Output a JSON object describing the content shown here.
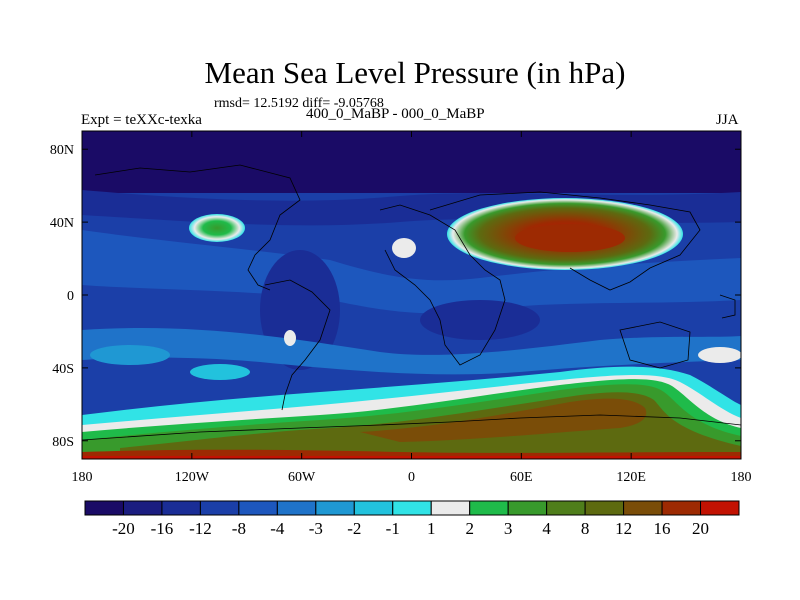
{
  "chart_data": {
    "type": "heatmap",
    "title": "Mean Sea Level Pressure (in hPa)",
    "stats_line": "rmsd= 12.5192 diff= -9.05768",
    "left_label": "Expt = teXXc-texka",
    "subtitle": "400_0_MaBP - 000_0_MaBP",
    "season": "JJA",
    "xlabel": "",
    "ylabel": "",
    "xlim": [
      -180,
      180
    ],
    "ylim": [
      -90,
      90
    ],
    "x_ticks": [
      {
        "value": -180,
        "label": "180"
      },
      {
        "value": -120,
        "label": "120W"
      },
      {
        "value": -60,
        "label": "60W"
      },
      {
        "value": 0,
        "label": "0"
      },
      {
        "value": 60,
        "label": "60E"
      },
      {
        "value": 120,
        "label": "120E"
      },
      {
        "value": 180,
        "label": "180"
      }
    ],
    "y_ticks": [
      {
        "value": 80,
        "label": "80N"
      },
      {
        "value": 40,
        "label": "40N"
      },
      {
        "value": 0,
        "label": "0"
      },
      {
        "value": -40,
        "label": "40S"
      },
      {
        "value": -80,
        "label": "80S"
      }
    ],
    "colorbar": {
      "levels": [
        "-20",
        "-16",
        "-12",
        "-8",
        "-4",
        "-3",
        "-2",
        "-1",
        "1",
        "2",
        "3",
        "4",
        "8",
        "12",
        "16",
        "20"
      ],
      "colors": [
        "#1a0b66",
        "#1b1d80",
        "#1a2d96",
        "#1b3fa8",
        "#1d57bd",
        "#1f73c9",
        "#1f98d3",
        "#22c2dd",
        "#31e3e6",
        "#ebebeb",
        "#1fbb4a",
        "#389a2c",
        "#4f7e1b",
        "#5d6a10",
        "#7a4d08",
        "#9d2a02",
        "#c21202"
      ]
    },
    "field_regions": [
      {
        "name": "southern-ocean-high",
        "value_range": [
          1,
          20
        ],
        "lat_range": [
          -85,
          -45
        ],
        "lon_range": [
          -150,
          180
        ]
      },
      {
        "name": "asia-high",
        "value_range": [
          2,
          16
        ],
        "lat_range": [
          20,
          50
        ],
        "lon_range": [
          10,
          140
        ]
      },
      {
        "name": "north-america-high",
        "value_range": [
          -1,
          4
        ],
        "lat_range": [
          30,
          40
        ],
        "lon_range": [
          -130,
          -100
        ]
      },
      {
        "name": "arctic-low",
        "value_range": [
          -20,
          -16
        ],
        "lat_range": [
          55,
          90
        ],
        "lon_range": [
          -180,
          180
        ]
      },
      {
        "name": "tropics-low",
        "value_range": [
          -12,
          -4
        ],
        "lat_range": [
          -40,
          40
        ],
        "lon_range": [
          -180,
          180
        ]
      }
    ]
  }
}
